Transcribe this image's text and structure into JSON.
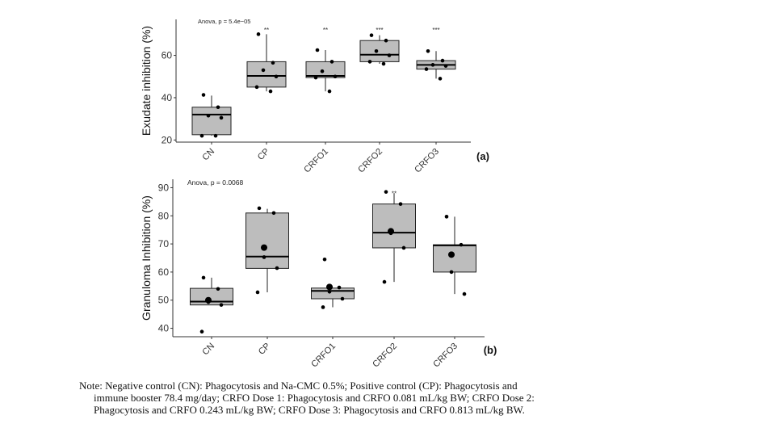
{
  "chart_data": [
    {
      "type": "box",
      "panel_label": "(a)",
      "ylabel": "Exudate inhibition (%)",
      "annotation": "Anova, p = 5.4e−05",
      "categories": [
        "CN",
        "CP",
        "CRFO1",
        "CRFO2",
        "CRFO3"
      ],
      "ylim": [
        19,
        77
      ],
      "yticks": [
        20,
        40,
        60
      ],
      "grid": false,
      "significance": [
        "",
        "**",
        "**",
        "***",
        "***"
      ],
      "boxes": [
        {
          "q1": 22.5,
          "median": 32,
          "q3": 35.5,
          "whisker_low": 22,
          "whisker_high": 41,
          "points": [
            41.3,
            35.5,
            31.5,
            30.5,
            22,
            22
          ]
        },
        {
          "q1": 45,
          "median": 50.3,
          "q3": 57,
          "whisker_low": 43,
          "whisker_high": 70,
          "points": [
            70,
            56.5,
            53,
            50,
            45,
            43
          ]
        },
        {
          "q1": 49.5,
          "median": 50.3,
          "q3": 57,
          "whisker_low": 43,
          "whisker_high": 62.5,
          "points": [
            62.5,
            57,
            52.5,
            50,
            49.5,
            43
          ]
        },
        {
          "q1": 57,
          "median": 60.3,
          "q3": 67,
          "whisker_low": 56,
          "whisker_high": 69.5,
          "points": [
            69.5,
            67,
            62,
            60,
            57,
            56
          ]
        },
        {
          "q1": 53.5,
          "median": 55.5,
          "q3": 57.5,
          "whisker_low": 49,
          "whisker_high": 62,
          "points": [
            62,
            57.5,
            55.5,
            55,
            53.5,
            49
          ]
        }
      ]
    },
    {
      "type": "box",
      "panel_label": "(b)",
      "ylabel": "Granuloma Inhibition (%)",
      "annotation": "Anova, p = 0.0068",
      "categories": [
        "CN",
        "CP",
        "CRFO1",
        "CRFO2",
        "CRFO3"
      ],
      "ylim": [
        37,
        93
      ],
      "yticks": [
        40,
        50,
        60,
        70,
        80,
        90
      ],
      "grid": false,
      "significance": [
        "",
        "",
        "",
        "**",
        ""
      ],
      "boxes": [
        {
          "q1": 48.3,
          "median": 49.5,
          "q3": 54.2,
          "whisker_low": 48.3,
          "whisker_high": 58,
          "mean": 50,
          "points": [
            58,
            54,
            49.3,
            48.3,
            38.8
          ]
        },
        {
          "q1": 61.3,
          "median": 65.5,
          "q3": 81,
          "whisker_low": 52.8,
          "whisker_high": 82.5,
          "mean": 68.7,
          "points": [
            82.7,
            81,
            65.3,
            61.4,
            52.8
          ]
        },
        {
          "q1": 50.5,
          "median": 53.3,
          "q3": 54.3,
          "whisker_low": 47.5,
          "whisker_high": 54.3,
          "mean": 54.7,
          "points": [
            64.5,
            54.5,
            53,
            50.5,
            47.5
          ]
        },
        {
          "q1": 68.6,
          "median": 74,
          "q3": 84.2,
          "whisker_low": 56.5,
          "whisker_high": 88,
          "mean": 74.5,
          "points": [
            88.5,
            84.2,
            73.8,
            68.6,
            56.5
          ]
        },
        {
          "q1": 60,
          "median": 69.5,
          "q3": 69.7,
          "whisker_low": 52.2,
          "whisker_high": 79.7,
          "mean": 66.2,
          "points": [
            79.7,
            69.7,
            60,
            52.2
          ]
        }
      ]
    }
  ],
  "note": {
    "line1": "Note: Negative control (CN): Phagocytosis and Na-CMC 0.5%; Positive control (CP): Phagocytosis and",
    "line2": "immune booster 78.4 mg/day; CRFO Dose 1: Phagocytosis and CRFO 0.081 mL/kg BW; CRFO Dose 2:",
    "line3": "Phagocytosis and CRFO 0.243 mL/kg BW; CRFO Dose 3: Phagocytosis and CRFO 0.813 mL/kg BW."
  }
}
